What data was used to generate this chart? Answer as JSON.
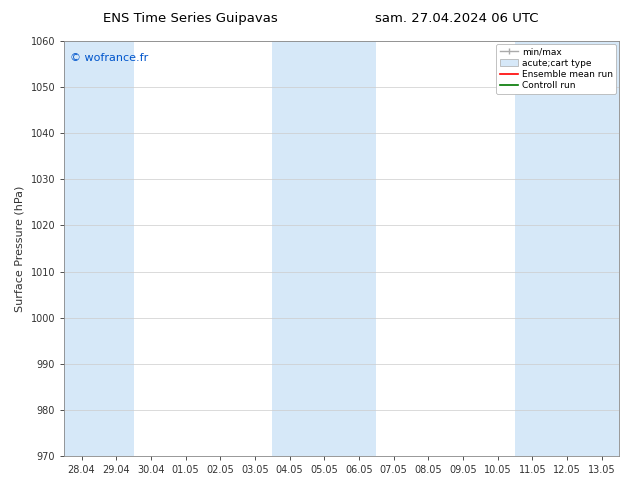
{
  "title_left": "ENS Time Series Guipavas",
  "title_right": "sam. 27.04.2024 06 UTC",
  "ylabel": "Surface Pressure (hPa)",
  "ylim": [
    970,
    1060
  ],
  "yticks": [
    970,
    980,
    990,
    1000,
    1010,
    1020,
    1030,
    1040,
    1050,
    1060
  ],
  "xtick_labels": [
    "28.04",
    "29.04",
    "30.04",
    "01.05",
    "02.05",
    "03.05",
    "04.05",
    "05.05",
    "06.05",
    "07.05",
    "08.05",
    "09.05",
    "10.05",
    "11.05",
    "12.05",
    "13.05"
  ],
  "watermark": "© wofrance.fr",
  "watermark_color": "#0055cc",
  "bg_color": "#ffffff",
  "plot_bg_color": "#ffffff",
  "shade_color": "#d6e8f8",
  "shaded_x_indices": [
    0,
    1,
    6,
    7,
    8,
    13,
    14,
    15
  ],
  "legend_entries": [
    {
      "label": "min/max",
      "color": "#aaaaaa",
      "style": "errorbar"
    },
    {
      "label": "acute;cart type",
      "color": "#d6e8f8",
      "style": "fill"
    },
    {
      "label": "Ensemble mean run",
      "color": "#ff0000",
      "style": "line"
    },
    {
      "label": "Controll run",
      "color": "#007700",
      "style": "line"
    }
  ],
  "spine_color": "#888888",
  "tick_color": "#333333",
  "grid_color": "#cccccc",
  "title_fontsize": 9.5,
  "tick_fontsize": 7,
  "ylabel_fontsize": 8,
  "watermark_fontsize": 8
}
